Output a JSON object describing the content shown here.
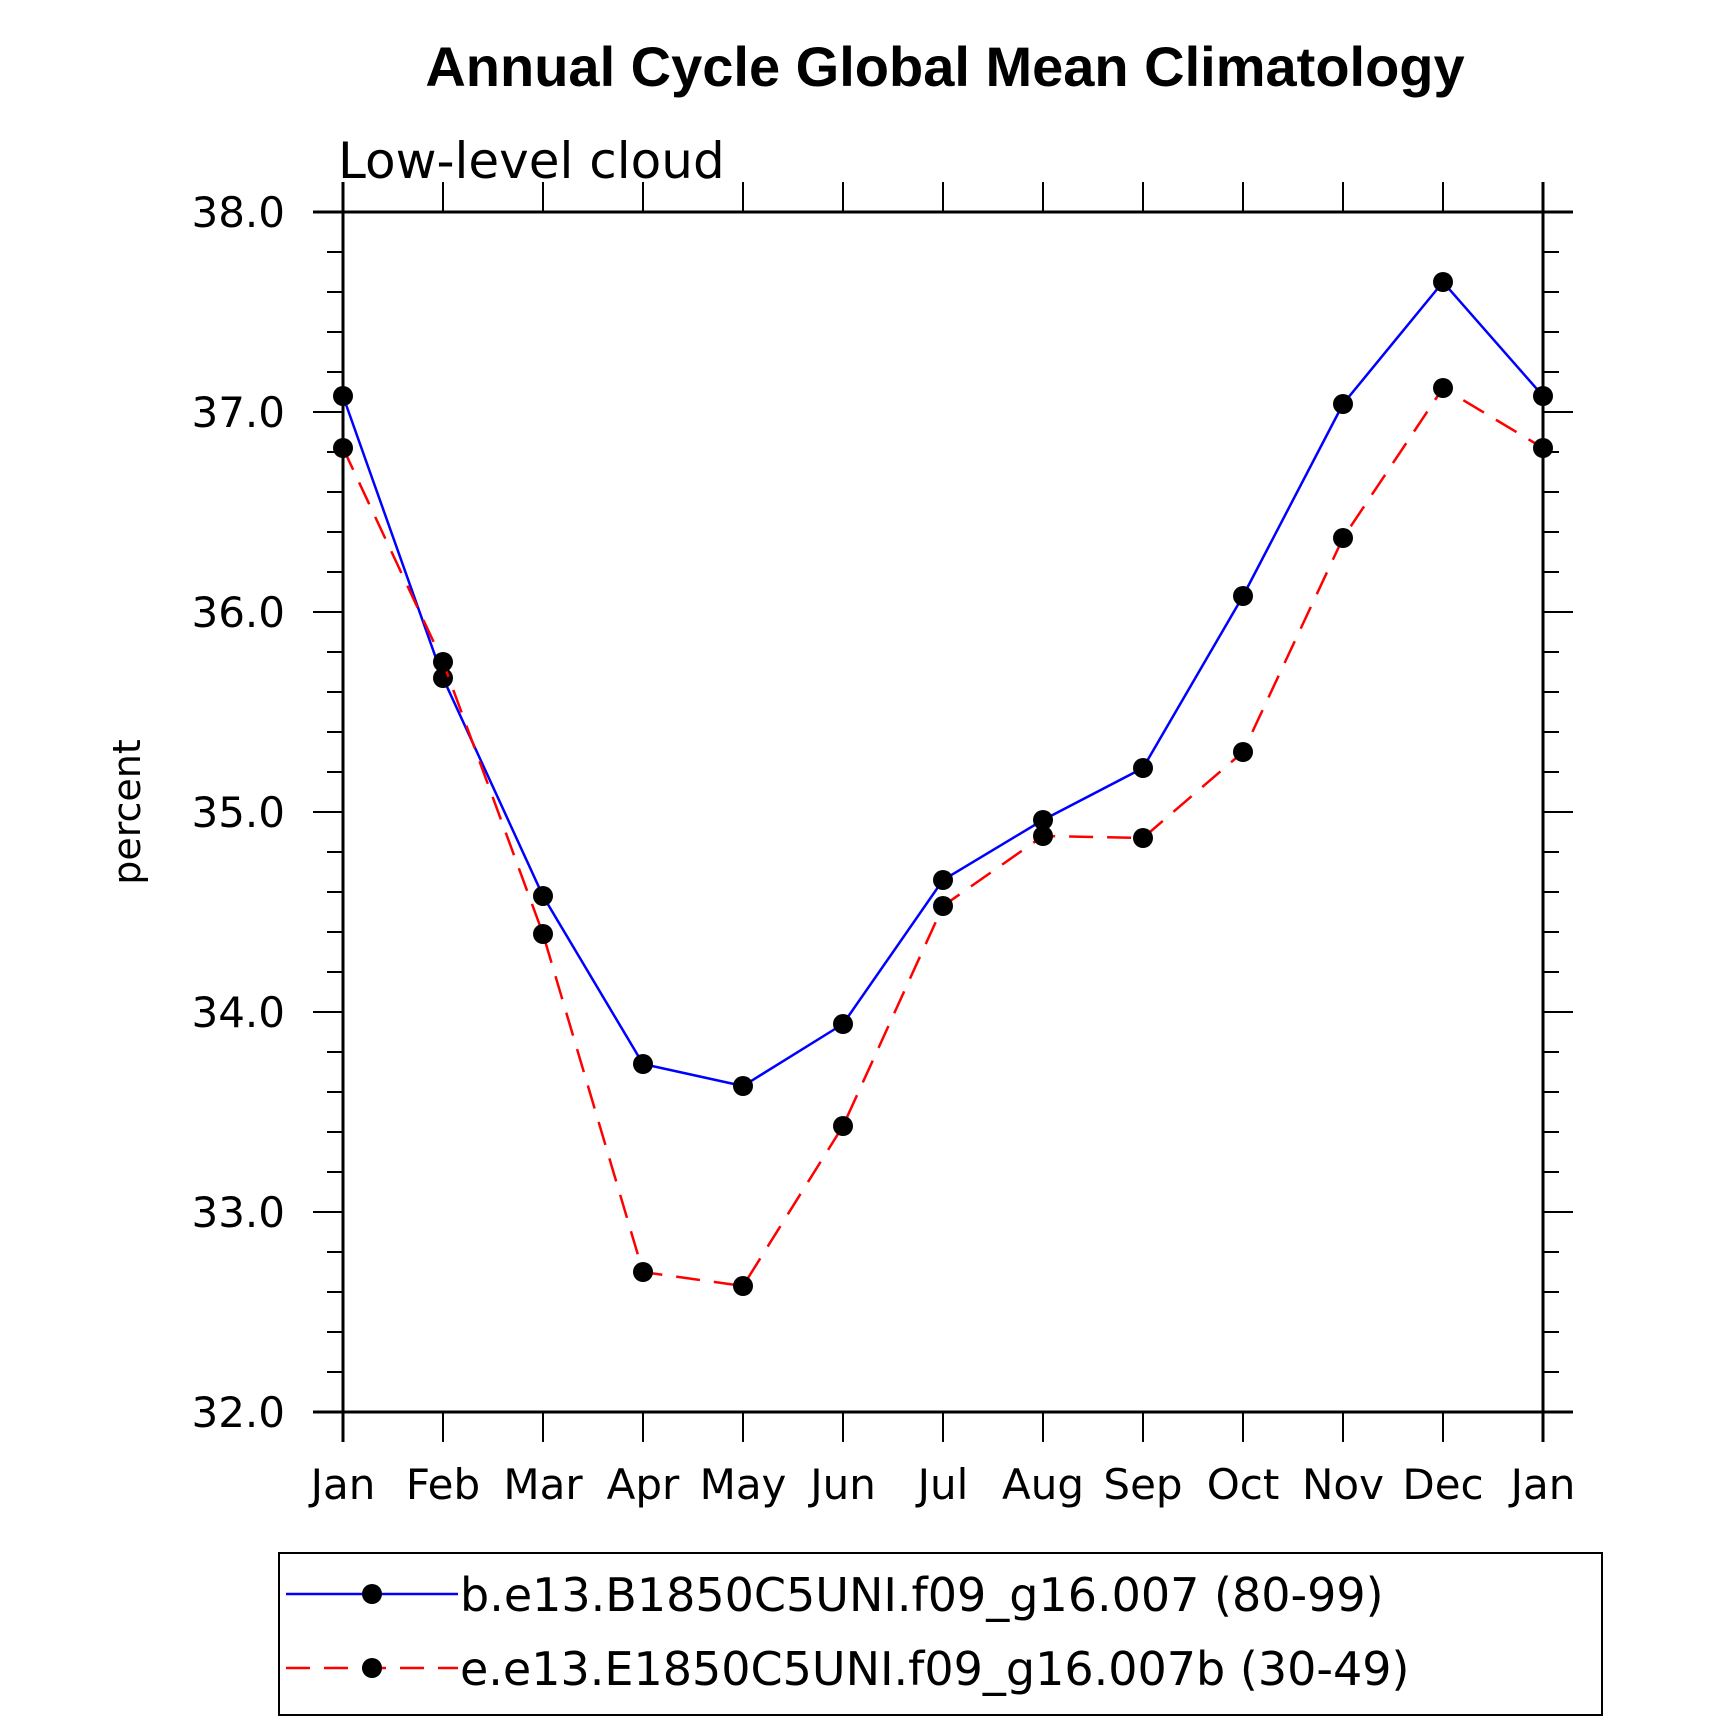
{
  "chart_data": {
    "type": "line",
    "title": "Annual Cycle Global Mean Climatology",
    "subtitle": "Low-level cloud",
    "xlabel": "",
    "ylabel": "percent",
    "ylim": [
      32.0,
      38.0
    ],
    "yticks": [
      "32.0",
      "33.0",
      "34.0",
      "35.0",
      "36.0",
      "37.0",
      "38.0"
    ],
    "categories": [
      "Jan",
      "Feb",
      "Mar",
      "Apr",
      "May",
      "Jun",
      "Jul",
      "Aug",
      "Sep",
      "Oct",
      "Nov",
      "Dec",
      "Jan"
    ],
    "grid": false,
    "legend_position": "bottom",
    "series": [
      {
        "name": "b.e13.B1850C5UNI.f09_g16.007 (80-99)",
        "color": "#0000ff",
        "dash": "solid",
        "values": [
          37.08,
          35.67,
          34.58,
          33.74,
          33.63,
          33.94,
          34.66,
          34.96,
          35.22,
          36.08,
          37.04,
          37.65,
          37.08
        ]
      },
      {
        "name": "e.e13.E1850C5UNI.f09_g16.007b (30-49)",
        "color": "#ff0000",
        "dash": "dashed",
        "values": [
          36.82,
          35.75,
          34.39,
          32.7,
          32.63,
          33.43,
          34.53,
          34.88,
          34.87,
          35.3,
          36.37,
          37.12,
          36.82
        ]
      }
    ]
  }
}
